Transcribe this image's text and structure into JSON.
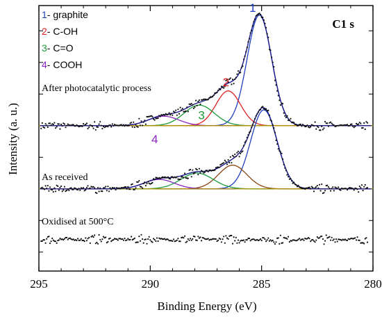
{
  "chart_data": {
    "type": "line",
    "title": "",
    "xlabel": "Binding Energy (eV)",
    "ylabel": "Intensity  (a. u.)",
    "xlim": [
      295,
      280
    ],
    "x_ticks": [
      295,
      290,
      285,
      280
    ],
    "x_reversed": true,
    "grid": false,
    "legend_position": "top-left",
    "legend": [
      {
        "num": "1",
        "label": "- graphite",
        "color": "#1f3fbf"
      },
      {
        "num": "2",
        "label": "- C-OH",
        "color": "#e02020"
      },
      {
        "num": "3",
        "label": "- C=O",
        "color": "#1a9a3a"
      },
      {
        "num": "4",
        "label": "- COOH",
        "color": "#8a22c0"
      }
    ],
    "corner_label": "C1 s",
    "spectra": [
      {
        "label": "After photocatalytic process",
        "baseline": 2.0,
        "noise": 0.05,
        "components": [
          {
            "peak": "1",
            "center": 285.1,
            "height": 3.5,
            "fwhm": 1.3,
            "color": "#1f3fbf"
          },
          {
            "peak": "2",
            "center": 286.5,
            "height": 1.1,
            "fwhm": 1.3,
            "color": "#e02020"
          },
          {
            "peak": "3",
            "center": 287.8,
            "height": 0.65,
            "fwhm": 1.6,
            "color": "#1a9a3a"
          },
          {
            "peak": "4",
            "center": 289.4,
            "height": 0.3,
            "fwhm": 1.6,
            "color": "#8a22c0"
          }
        ],
        "envelope_color": "#1a1a8a",
        "baseline_color": "#b09000"
      },
      {
        "label": "As received",
        "baseline": 0.0,
        "noise": 0.05,
        "components": [
          {
            "center": 284.9,
            "height": 2.5,
            "fwhm": 1.4,
            "color": "#1f3fbf"
          },
          {
            "center": 286.3,
            "height": 0.75,
            "fwhm": 1.5,
            "color": "#8b4513"
          },
          {
            "center": 287.9,
            "height": 0.5,
            "fwhm": 1.7,
            "color": "#1a9a3a"
          },
          {
            "center": 289.6,
            "height": 0.3,
            "fwhm": 1.6,
            "color": "#8a22c0"
          }
        ],
        "envelope_color": "#1a1a8a",
        "baseline_color": "#b09000"
      },
      {
        "label": "Oxidised at 500°C",
        "baseline": -1.6,
        "noise": 0.05,
        "components": []
      }
    ]
  }
}
